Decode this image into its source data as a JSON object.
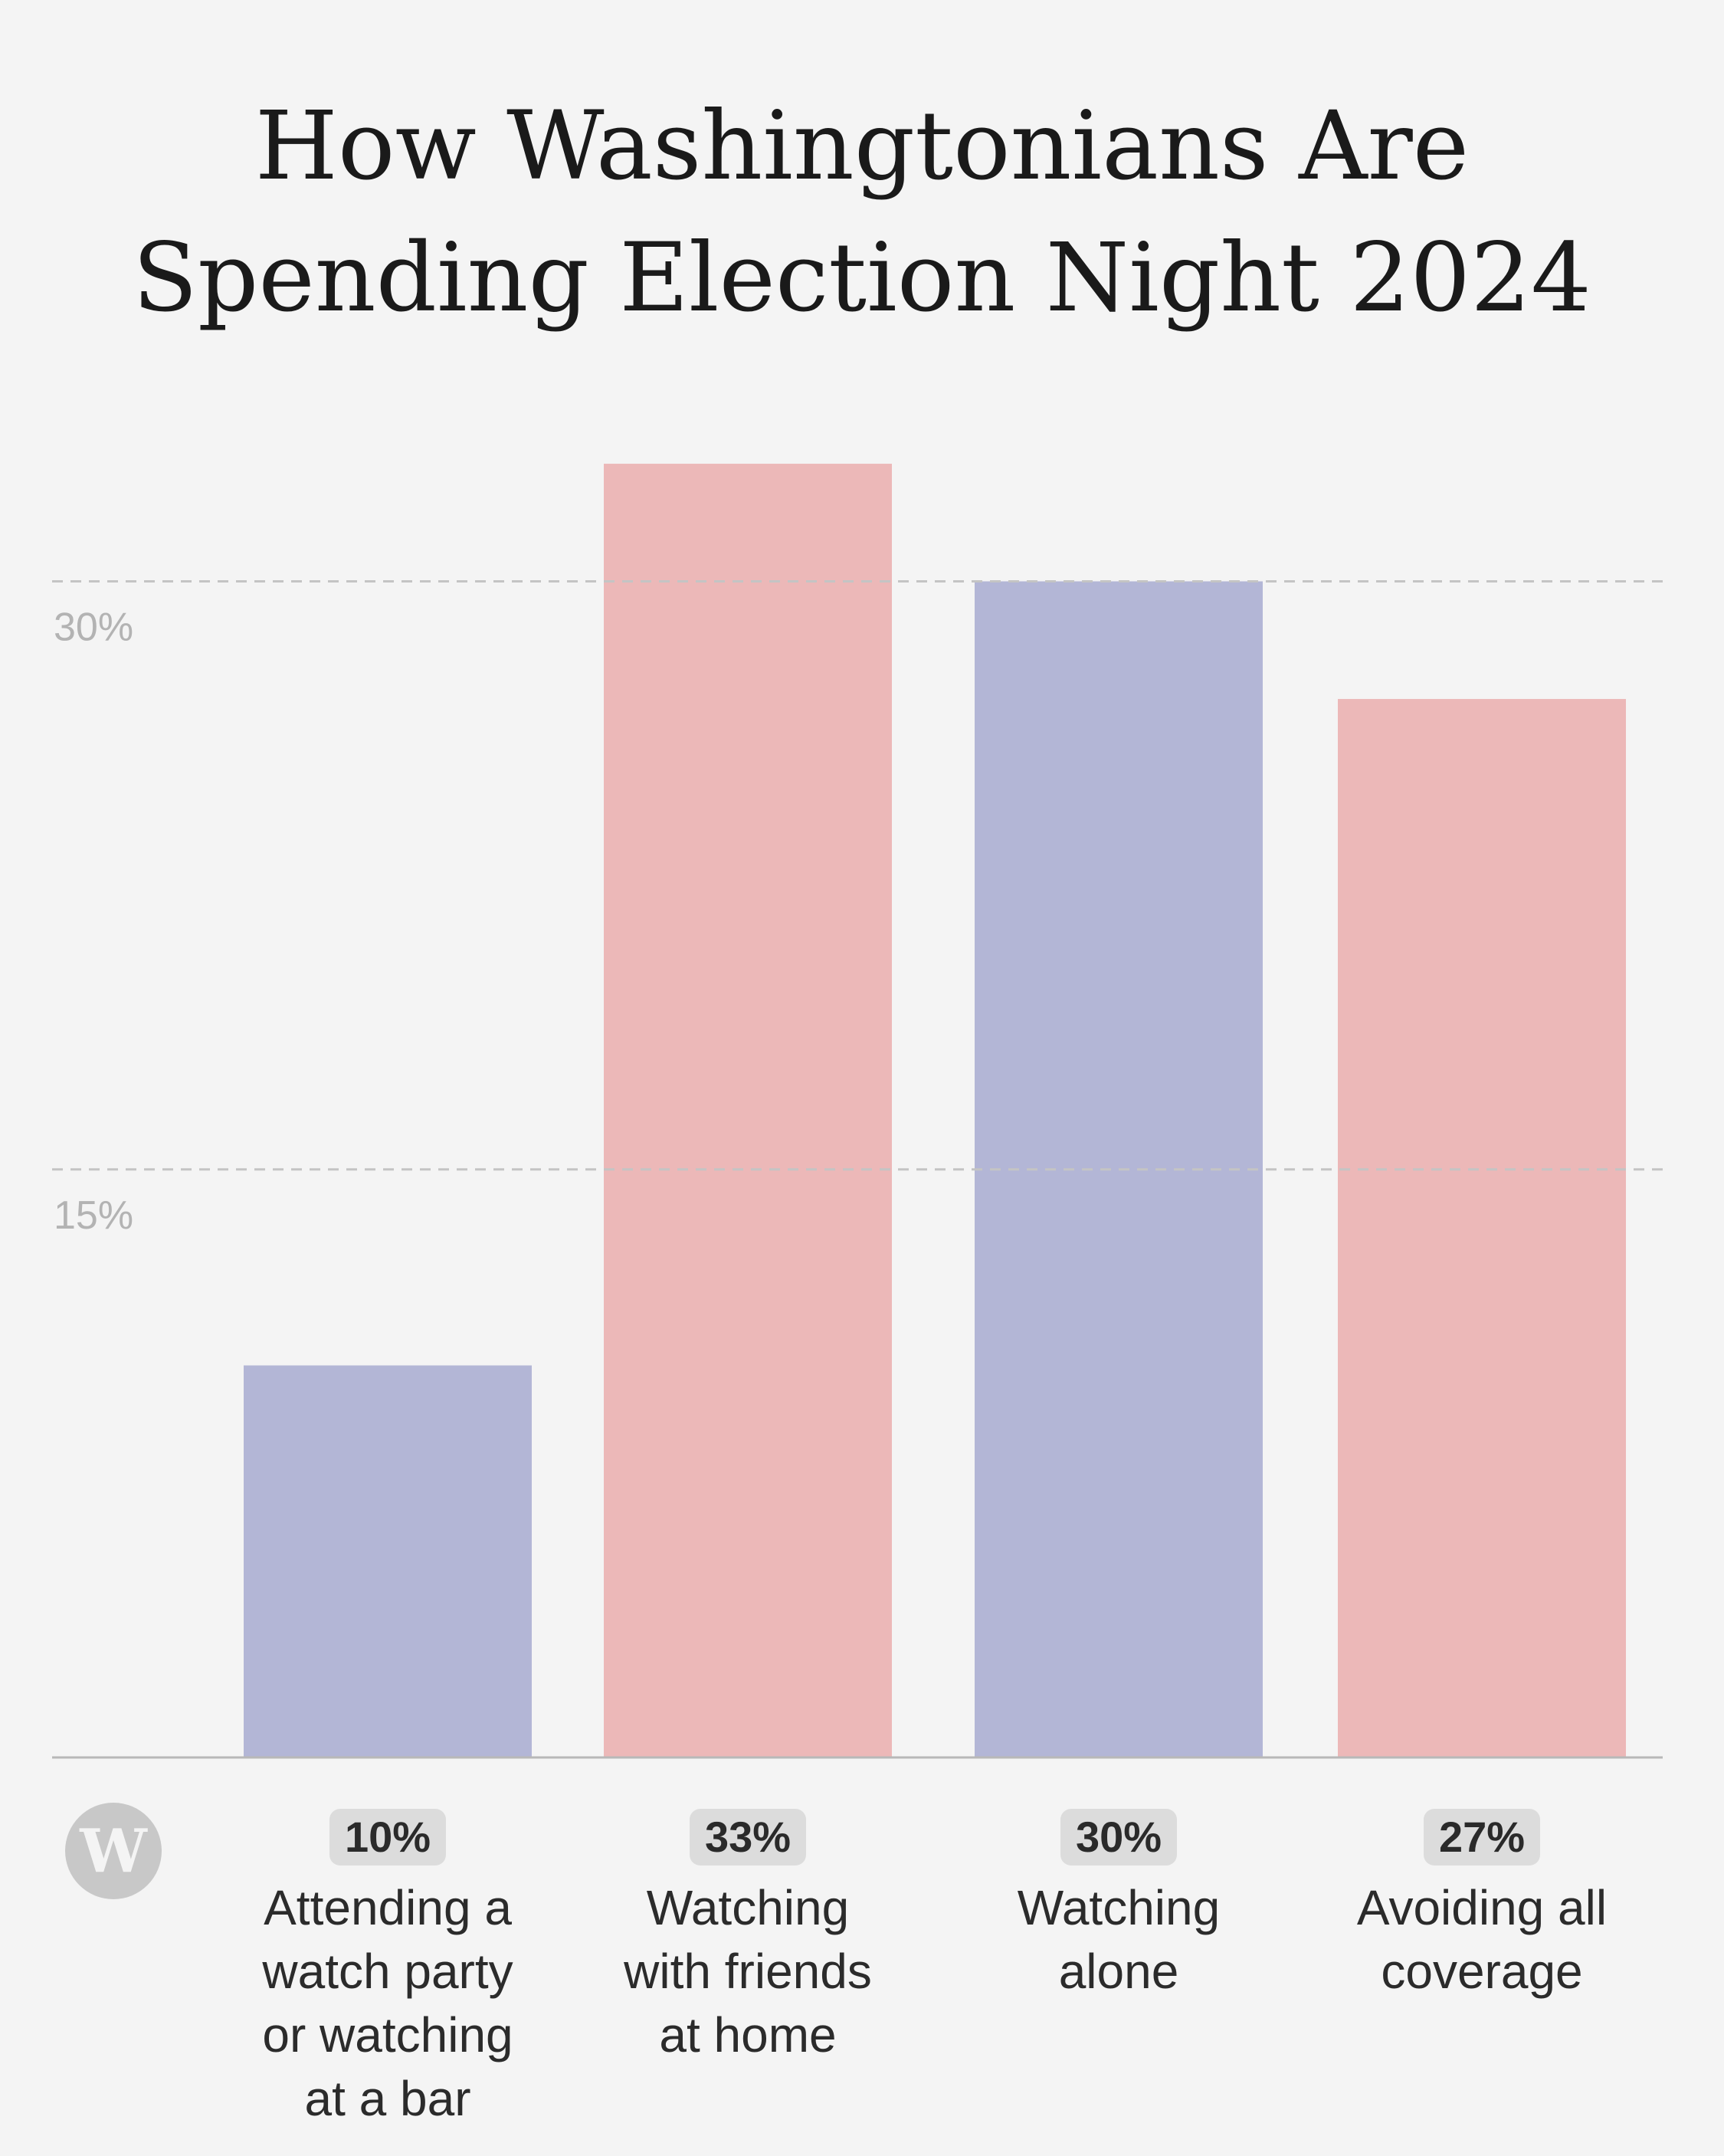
{
  "title_lines": [
    "How Washingtonians Are",
    "Spending Election Night 2024"
  ],
  "logo_text": "W",
  "colors": {
    "blue": "#b3b6d6",
    "pink": "#ecb8b8",
    "grid": "#c4c4c4",
    "axis": "#b8b8b8"
  },
  "chart_data": {
    "type": "bar",
    "title": "How Washingtonians Are Spending Election Night 2024",
    "categories": [
      [
        "Attending a",
        "watch party",
        "or watching",
        "at a bar"
      ],
      [
        "Watching",
        "with friends",
        "at home"
      ],
      [
        "Watching",
        "alone"
      ],
      [
        "Avoiding all",
        "coverage"
      ]
    ],
    "values": [
      10,
      33,
      30,
      27
    ],
    "value_labels": [
      "10%",
      "33%",
      "30%",
      "27%"
    ],
    "bar_colors": [
      "#b3b6d6",
      "#ecb8b8",
      "#b3b6d6",
      "#ecb8b8"
    ],
    "yticks": [
      15,
      30
    ],
    "ytick_labels": [
      "15%",
      "30%"
    ],
    "ylim": [
      0,
      33
    ],
    "grid": true,
    "xlabel": "",
    "ylabel": ""
  }
}
